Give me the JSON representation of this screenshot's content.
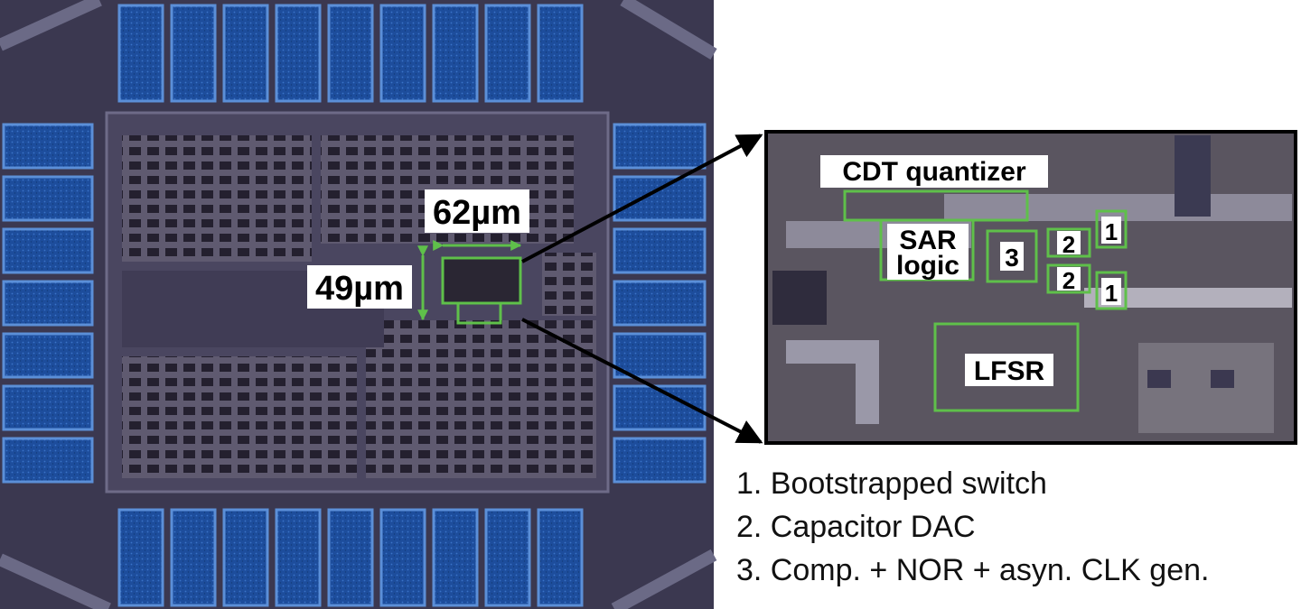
{
  "die": {
    "width_label": "62µm",
    "height_label": "49µm"
  },
  "zoom": {
    "cdt_label": "CDT quantizer",
    "sar_line1": "SAR",
    "sar_line2": "logic",
    "block3": "3",
    "block2a": "2",
    "block2b": "2",
    "block1a": "1",
    "block1b": "1",
    "lfsr": "LFSR"
  },
  "legend": [
    "1. Bootstrapped switch",
    "2. Capacitor DAC",
    "3. Comp. + NOR + asyn. CLK gen."
  ],
  "colors": {
    "highlight": "#5fc04a",
    "pad": "#1f4f9a",
    "die_bg": "#3b3850"
  }
}
